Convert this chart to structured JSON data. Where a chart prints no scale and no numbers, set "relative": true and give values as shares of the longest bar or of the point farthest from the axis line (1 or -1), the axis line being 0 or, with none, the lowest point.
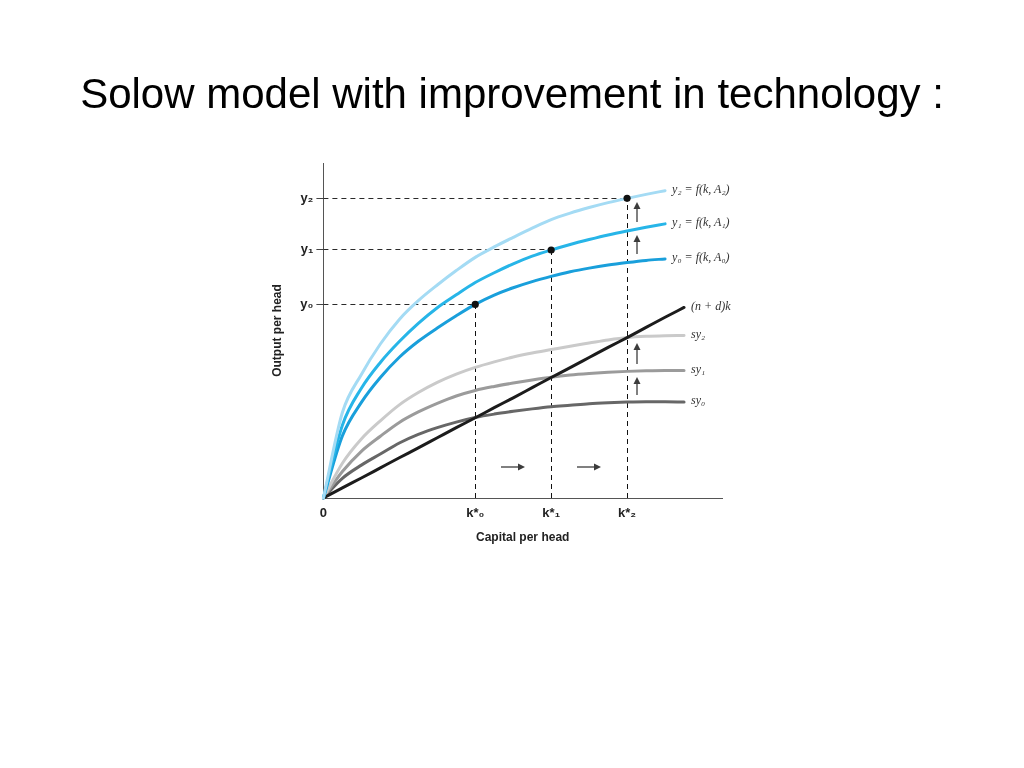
{
  "chart_data": {
    "type": "line",
    "title": "Solow model with improvement in technology :",
    "xlabel": "Capital per head",
    "ylabel": "Output per head",
    "relative": true,
    "categories": [
      "0",
      null,
      null,
      null,
      null,
      null,
      null,
      null,
      "k*₀",
      null,
      null,
      null,
      "k*₁",
      null,
      null,
      null,
      "k*₂",
      null,
      null,
      null,
      null,
      null
    ],
    "series": [
      {
        "name": "y₂ = f(k, A₂)",
        "color": "#a4dbf4",
        "values": [
          0,
          0.278,
          0.402,
          0.501,
          0.581,
          0.642,
          0.693,
          0.74,
          0.783,
          0.817,
          0.848,
          0.878,
          0.906,
          0.927,
          0.945,
          0.961,
          0.975,
          0.988,
          1,
          null,
          null,
          null
        ]
      },
      {
        "name": "y₁ = f(k, A₁)",
        "color": "#27b5e8",
        "values": [
          0,
          0.237,
          0.357,
          0.441,
          0.509,
          0.568,
          0.619,
          0.661,
          0.701,
          0.733,
          0.762,
          0.787,
          0.807,
          0.825,
          0.841,
          0.856,
          0.869,
          0.881,
          0.892,
          null,
          null,
          null
        ]
      },
      {
        "name": "y₀ = f(k, A₀)",
        "color": "#199fdb",
        "values": [
          0,
          0.202,
          0.311,
          0.392,
          0.458,
          0.51,
          0.553,
          0.593,
          0.63,
          0.66,
          0.684,
          0.704,
          0.721,
          0.736,
          0.748,
          0.758,
          0.766,
          0.773,
          0.778,
          null,
          null,
          null
        ]
      },
      {
        "name": "(n + d)k",
        "color": "#1c1c1c",
        "values": [
          0,
          0.033,
          0.065,
          0.098,
          0.131,
          0.163,
          0.196,
          0.229,
          0.261,
          0.294,
          0.326,
          0.359,
          0.392,
          0.424,
          0.457,
          0.49,
          0.522,
          0.555,
          0.588,
          0.62,
          null,
          null
        ]
      },
      {
        "name": "sy₂",
        "color": "#cacaca",
        "values": [
          0,
          0.113,
          0.192,
          0.251,
          0.303,
          0.343,
          0.376,
          0.403,
          0.425,
          0.443,
          0.459,
          0.472,
          0.483,
          0.494,
          0.504,
          0.514,
          0.522,
          0.526,
          0.528,
          0.529,
          null,
          null
        ]
      },
      {
        "name": "sy₁",
        "color": "#9b9b9b",
        "values": [
          0,
          0.086,
          0.152,
          0.201,
          0.246,
          0.28,
          0.308,
          0.332,
          0.35,
          0.363,
          0.374,
          0.384,
          0.393,
          0.4,
          0.405,
          0.409,
          0.412,
          0.414,
          0.415,
          0.415,
          null,
          null
        ]
      },
      {
        "name": "sy₀",
        "color": "#676767",
        "values": [
          0,
          0.064,
          0.107,
          0.143,
          0.179,
          0.207,
          0.229,
          0.247,
          0.262,
          0.273,
          0.282,
          0.29,
          0.297,
          0.302,
          0.307,
          0.31,
          0.312,
          0.313,
          0.313,
          0.312,
          null,
          null
        ]
      },
      {
        "type": "lollipop",
        "color": "#111111",
        "line_style": "dashed",
        "values": [
          null,
          null,
          null,
          null,
          null,
          null,
          null,
          null,
          0.63,
          null,
          null,
          null,
          0.807,
          null,
          null,
          null,
          0.975,
          null,
          null,
          null,
          null,
          null
        ]
      }
    ],
    "ref_lines": [
      {
        "axis": "y",
        "value": 0.63,
        "label": "y₀",
        "line_style": "dashed"
      },
      {
        "axis": "y",
        "value": 0.807,
        "label": "y₁",
        "line_style": "dashed"
      },
      {
        "axis": "y",
        "value": 0.975,
        "label": "y₂",
        "line_style": "dashed"
      }
    ]
  }
}
